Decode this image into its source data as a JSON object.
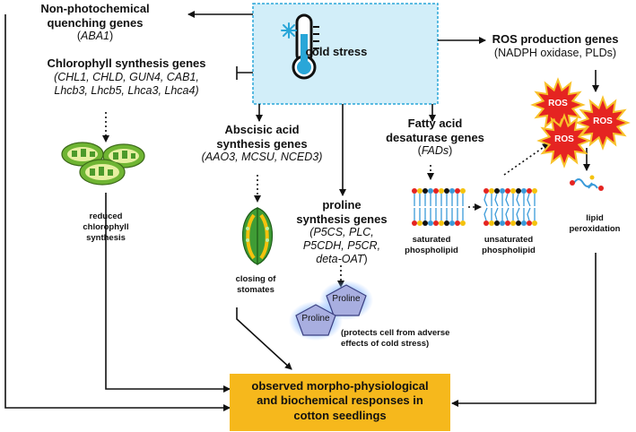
{
  "center": {
    "label": "cold stress"
  },
  "npq": {
    "title_line1": "Non-photochemical",
    "title_line2": "quenching genes",
    "genes_pre": "(",
    "genes": "ABA1",
    "genes_post": ")"
  },
  "chl": {
    "title": "Chlorophyll synthesis genes",
    "genes_line1": "(CHL1, CHLD, GUN4, CAB1,",
    "genes_line2": "Lhcb3, Lhcb5, Lhca3, Lhca4)",
    "effect_line1": "reduced",
    "effect_line2": "chlorophyll",
    "effect_line3": "synthesis"
  },
  "aba": {
    "title_line1": "Abscisic acid",
    "title_line2": "synthesis genes",
    "genes": "(AAO3, MCSU, NCED3)",
    "effect_line1": "closing of",
    "effect_line2": "stomates"
  },
  "proline": {
    "title_line1": "proline",
    "title_line2": "synthesis genes",
    "genes_line1": "(P5CS, PLC,",
    "genes_line2": "P5CDH, P5CR,",
    "genes_line3_pre": "deta-OAT",
    "genes_line3_post": ")",
    "molecule": "Proline",
    "note_line1": "(protects cell from adverse",
    "note_line2": "effects of cold stress)"
  },
  "fad": {
    "title_line1": "Fatty acid",
    "title_line2": "desaturase genes",
    "genes_pre": "(",
    "genes": "FADs",
    "genes_post": ")",
    "sat_line1": "saturated",
    "sat_line2": "phospholipid",
    "unsat_line1": "unsaturated",
    "unsat_line2": "phospholipid"
  },
  "ros": {
    "title": "ROS production genes",
    "genes": "(NADPH oxidase, PLDs)",
    "burst": "ROS",
    "effect_line1": "lipid",
    "effect_line2": "peroxidation"
  },
  "result": {
    "line1": "observed morpho-physiological",
    "line2": "and biochemical responses in",
    "line3": "cotton seedlings"
  },
  "colors": {
    "center_fill": "#d2eef9",
    "center_border": "#29a6d8",
    "result_fill": "#f6b81c",
    "ros_fill": "#e52421",
    "ros_border": "#f8c22b",
    "proline_fill": "#a8aee0",
    "chloroplast": "#6fb533",
    "stomate_green": "#3f9c35",
    "stomate_yellow": "#f4c20d",
    "membrane_blue": "#3a9ad9"
  }
}
